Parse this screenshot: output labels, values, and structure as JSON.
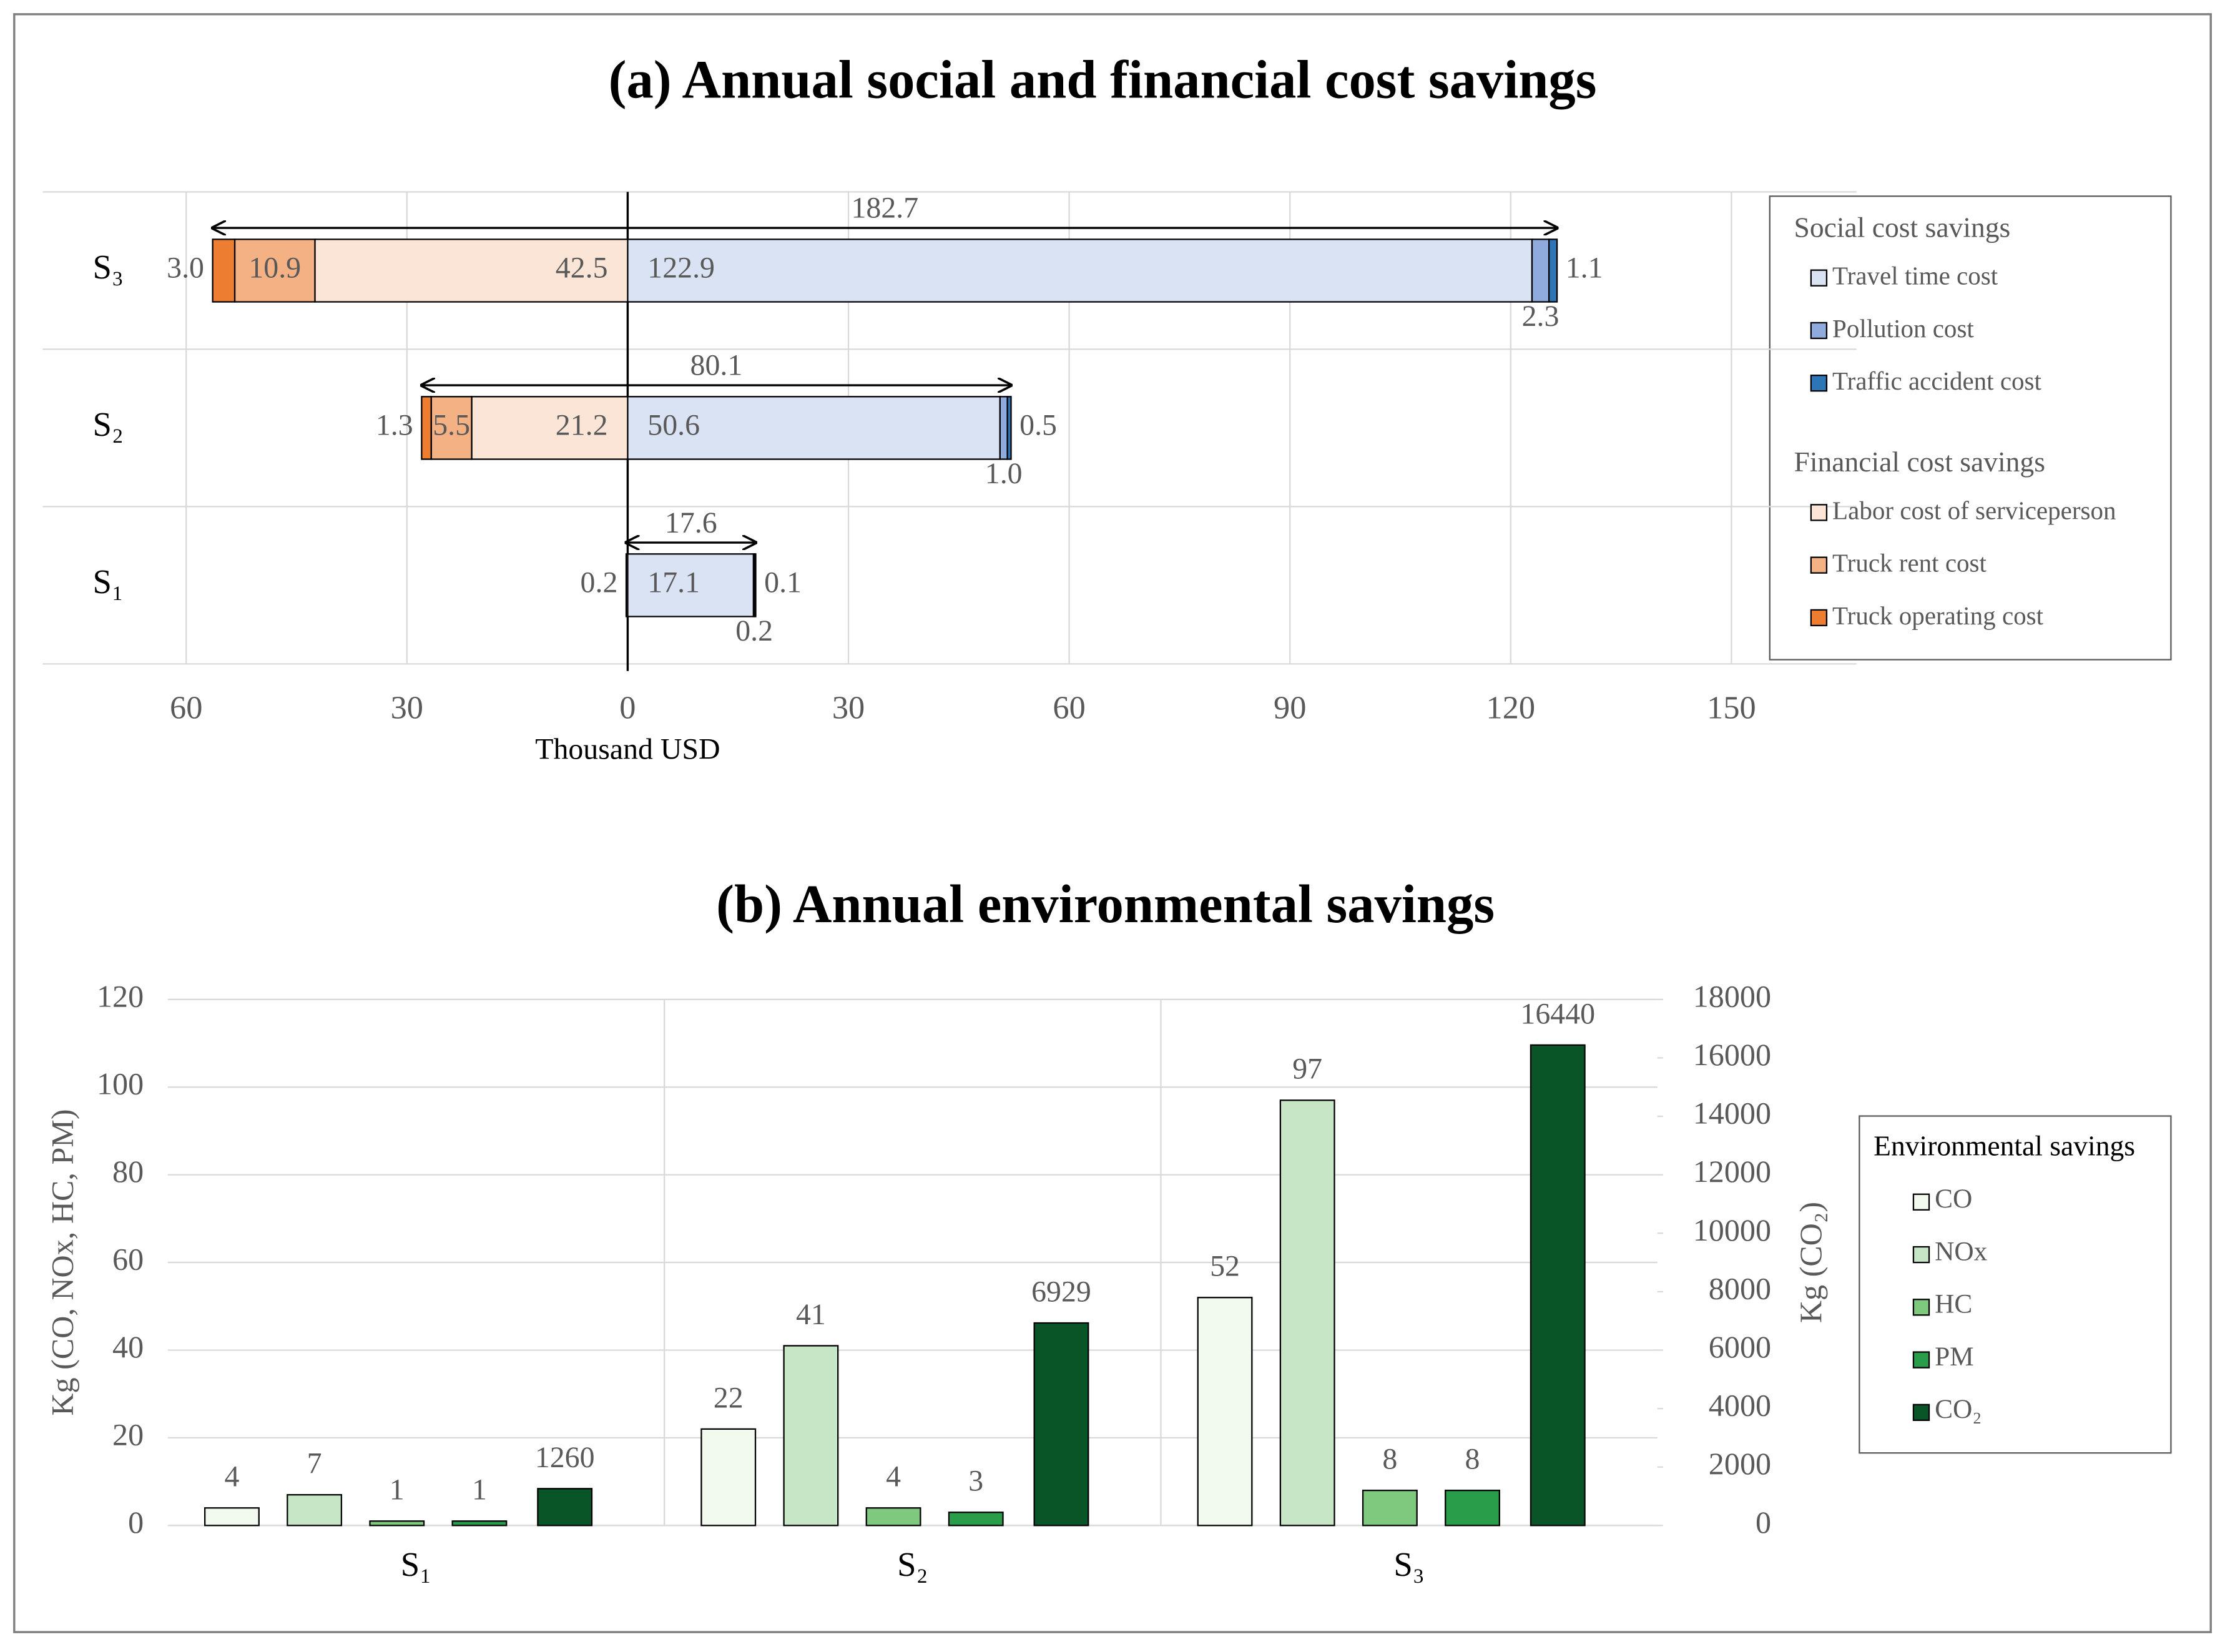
{
  "chart_data": [
    {
      "type": "diverging-bar",
      "title": "(a) Annual social and financial cost savings",
      "categories": [
        "S₃",
        "S₂",
        "S₁"
      ],
      "series": [
        {
          "name": "Travel time cost",
          "group": "Social cost savings",
          "color": "#dae3f3",
          "values": [
            122.9,
            50.6,
            17.1
          ],
          "value_labels": [
            "122.9",
            "50.6",
            "17.1"
          ]
        },
        {
          "name": "Pollution cost",
          "group": "Social cost savings",
          "color": "#8faadc",
          "values": [
            2.3,
            1.0,
            0.2
          ],
          "value_labels": [
            "2.3",
            "1.0",
            "0.2"
          ]
        },
        {
          "name": "Traffic accident cost",
          "group": "Social cost savings",
          "color": "#2e75b6",
          "values": [
            1.1,
            0.5,
            0.1
          ],
          "value_labels": [
            "1.1",
            "0.5",
            "0.1"
          ]
        },
        {
          "name": "Labor cost of serviceperson",
          "group": "Financial cost savings",
          "color": "#fbe5d6",
          "values": [
            -42.5,
            -21.2,
            null
          ],
          "value_labels": [
            "42.5",
            "21.2",
            null
          ]
        },
        {
          "name": "Truck rent cost",
          "group": "Financial cost savings",
          "color": "#f4b183",
          "values": [
            -10.9,
            -5.5,
            null
          ],
          "value_labels": [
            "10.9",
            "5.5",
            null
          ]
        },
        {
          "name": "Truck operating cost",
          "group": "Financial cost savings",
          "color": "#ed7d31",
          "values": [
            -3.0,
            -1.3,
            -0.2
          ],
          "value_labels": [
            "3.0",
            "1.3",
            "0.2"
          ]
        }
      ],
      "totals": [
        182.7,
        80.1,
        17.6
      ],
      "xlabel": "Thousand USD",
      "xlim": [
        -79.5,
        167
      ],
      "xticks": [
        {
          "value": -60,
          "label": "60"
        },
        {
          "value": -30,
          "label": "30"
        },
        0,
        30,
        60,
        90,
        120,
        150
      ],
      "grid": true,
      "legend": "right"
    },
    {
      "type": "grouped-bar",
      "title": "(b) Annual environmental savings",
      "categories": [
        "S₁",
        "S₂",
        "S₃"
      ],
      "series": [
        {
          "name": "CO",
          "color": "#f2f9ef",
          "values": [
            4,
            22,
            52
          ]
        },
        {
          "name": "NOx",
          "color": "#c6e6c6",
          "values": [
            7,
            41,
            97
          ]
        },
        {
          "name": "HC",
          "color": "#7fc97f",
          "values": [
            1,
            4,
            8
          ]
        },
        {
          "name": "PM",
          "color": "#2a9d4a",
          "values": [
            1,
            3,
            8
          ]
        },
        {
          "name": "CO₂",
          "color": "#0a5528",
          "axis": "y2",
          "values": [
            1260,
            6929,
            16440
          ]
        }
      ],
      "legend_title": "Environmental savings",
      "ylabel": "Kg (CO, NOx, HC, PM)",
      "y2label": "Kg (CO₂)",
      "ylim": [
        0,
        120
      ],
      "yticks": [
        0,
        20,
        40,
        60,
        80,
        100,
        120
      ],
      "y2lim": [
        0,
        18000
      ],
      "y2ticks": [
        0,
        2000,
        4000,
        6000,
        8000,
        10000,
        12000,
        14000,
        16000,
        18000
      ],
      "grid": true,
      "legend": "right"
    }
  ]
}
